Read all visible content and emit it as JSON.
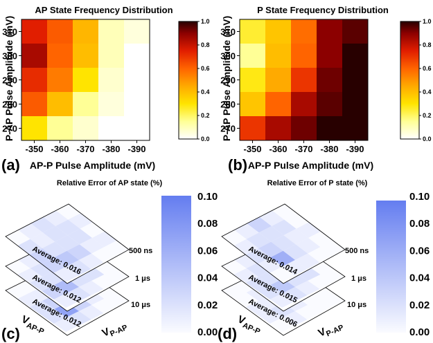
{
  "chart_data": [
    {
      "panel": "(a)",
      "type": "heatmap",
      "title": "AP State Frequency Distribution",
      "xlabel": "AP-P Pulse Amplitude (mV)",
      "ylabel": "P-AP Pulse Amplitude (mV)",
      "x": [
        "-350",
        "-360",
        "-370",
        "-380",
        "-390"
      ],
      "y": [
        "310",
        "300",
        "290",
        "280",
        "270"
      ],
      "values": [
        [
          0.75,
          0.62,
          0.42,
          0.1,
          0.05
        ],
        [
          0.85,
          0.6,
          0.4,
          0.1,
          0.0
        ],
        [
          0.72,
          0.55,
          0.3,
          0.07,
          0.0
        ],
        [
          0.62,
          0.4,
          0.15,
          0.05,
          0.0
        ],
        [
          0.3,
          0.15,
          0.07,
          0.0,
          0.0
        ]
      ],
      "colorbar": {
        "ticks": [
          "0.0",
          "0.2",
          "0.4",
          "0.6",
          "0.8",
          "1.0"
        ],
        "range": [
          0,
          1.0
        ]
      }
    },
    {
      "panel": "(b)",
      "type": "heatmap",
      "title": "P State Frequency Distribution",
      "xlabel": "AP-P Pulse Amplitude (mV)",
      "ylabel": "P-AP Pulse Amplitude (mV)",
      "x": [
        "-350",
        "-360",
        "-370",
        "-380",
        "-390"
      ],
      "y": [
        "310",
        "300",
        "290",
        "280",
        "270"
      ],
      "values": [
        [
          0.25,
          0.38,
          0.58,
          0.9,
          0.95
        ],
        [
          0.15,
          0.4,
          0.6,
          0.9,
          1.0
        ],
        [
          0.28,
          0.45,
          0.7,
          0.93,
          1.0
        ],
        [
          0.38,
          0.6,
          0.85,
          0.95,
          1.0
        ],
        [
          0.7,
          0.85,
          0.93,
          1.0,
          1.0
        ]
      ],
      "colorbar": {
        "ticks": [
          "0.0",
          "0.2",
          "0.4",
          "0.6",
          "0.8",
          "1.0"
        ],
        "range": [
          0,
          1.0
        ]
      }
    },
    {
      "panel": "(c)",
      "type": "heatmap",
      "title": "Relative Error of AP state (%)",
      "layers": [
        {
          "label": "500 ns",
          "average": "Average: 0.016",
          "values": [
            [
              0.0,
              0.01,
              0.0,
              0.01,
              0.0
            ],
            [
              0.01,
              0.02,
              0.02,
              0.01,
              0.0
            ],
            [
              0.02,
              0.02,
              0.02,
              0.03,
              0.01
            ],
            [
              0.01,
              0.01,
              0.02,
              0.04,
              0.02
            ],
            [
              0.0,
              0.02,
              0.03,
              0.03,
              0.01
            ]
          ]
        },
        {
          "label": "1 μs",
          "average": "Average: 0.012",
          "values": [
            [
              0.0,
              0.01,
              0.0,
              0.0,
              0.0
            ],
            [
              0.01,
              0.02,
              0.01,
              0.02,
              0.0
            ],
            [
              0.01,
              0.01,
              0.03,
              0.02,
              0.01
            ],
            [
              0.01,
              0.02,
              0.02,
              0.05,
              0.02
            ],
            [
              0.0,
              0.01,
              0.02,
              0.03,
              0.01
            ]
          ]
        },
        {
          "label": "10 μs",
          "average": "Average: 0.012",
          "values": [
            [
              0.0,
              0.0,
              0.01,
              0.0,
              0.0
            ],
            [
              0.01,
              0.01,
              0.02,
              0.01,
              0.0
            ],
            [
              0.01,
              0.02,
              0.02,
              0.03,
              0.01
            ],
            [
              0.0,
              0.01,
              0.03,
              0.07,
              0.02
            ],
            [
              0.0,
              0.01,
              0.02,
              0.02,
              0.01
            ]
          ]
        }
      ],
      "axis_labels": {
        "left": "V",
        "left_sub": "AP-P",
        "right": "V",
        "right_sub": "P-AP"
      },
      "colorbar": {
        "ticks": [
          "0.00",
          "0.02",
          "0.04",
          "0.06",
          "0.08",
          "0.10"
        ],
        "range": [
          0,
          0.1
        ]
      }
    },
    {
      "panel": "(d)",
      "type": "heatmap",
      "title": "Relative Error of P state (%)",
      "layers": [
        {
          "label": "500 ns",
          "average": "Average: 0.014",
          "values": [
            [
              0.0,
              0.0,
              0.01,
              0.0,
              0.0
            ],
            [
              0.01,
              0.02,
              0.01,
              0.01,
              0.0
            ],
            [
              0.03,
              0.02,
              0.02,
              0.02,
              0.01
            ],
            [
              0.01,
              0.02,
              0.03,
              0.06,
              0.01
            ],
            [
              0.0,
              0.01,
              0.02,
              0.01,
              0.0
            ]
          ]
        },
        {
          "label": "1 μs",
          "average": "Average: 0.015",
          "values": [
            [
              0.0,
              0.01,
              0.0,
              0.0,
              0.0
            ],
            [
              0.01,
              0.02,
              0.01,
              0.02,
              0.0
            ],
            [
              0.01,
              0.02,
              0.03,
              0.02,
              0.01
            ],
            [
              0.01,
              0.02,
              0.02,
              0.04,
              0.02
            ],
            [
              0.0,
              0.01,
              0.02,
              0.02,
              0.01
            ]
          ]
        },
        {
          "label": "10 μs",
          "average": "Average: 0.006",
          "values": [
            [
              0.0,
              0.0,
              0.0,
              0.0,
              0.0
            ],
            [
              0.0,
              0.01,
              0.01,
              0.0,
              0.0
            ],
            [
              0.01,
              0.01,
              0.01,
              0.01,
              0.0
            ],
            [
              0.0,
              0.01,
              0.01,
              0.02,
              0.01
            ],
            [
              0.0,
              0.0,
              0.01,
              0.01,
              0.0
            ]
          ]
        }
      ],
      "axis_labels": {
        "left": "V",
        "left_sub": "AP-P",
        "right": "V",
        "right_sub": "P-AP"
      },
      "colorbar": {
        "ticks": [
          "0.00",
          "0.02",
          "0.04",
          "0.06",
          "0.08",
          "0.10"
        ],
        "range": [
          0,
          0.1
        ]
      }
    }
  ]
}
